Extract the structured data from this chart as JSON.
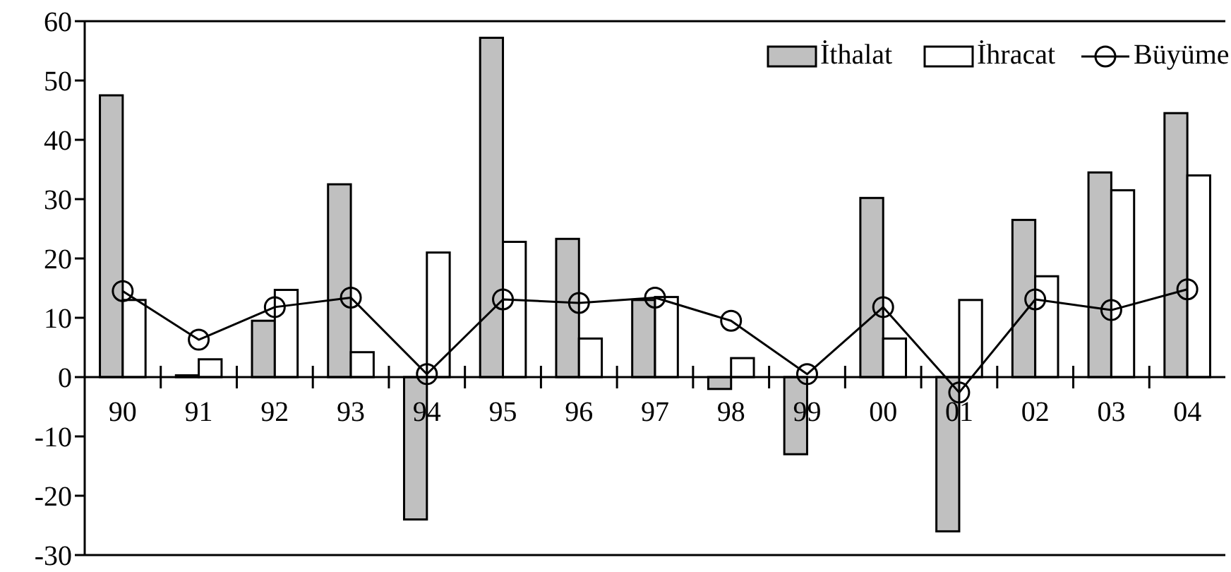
{
  "chart_data": {
    "type": "bar",
    "categories": [
      "90",
      "91",
      "92",
      "93",
      "94",
      "95",
      "96",
      "97",
      "98",
      "99",
      "00",
      "01",
      "02",
      "03",
      "04"
    ],
    "series": [
      {
        "name": "İthalat",
        "color": "#c0c0c0",
        "values": [
          47.5,
          0.3,
          9.5,
          32.5,
          -24,
          57.2,
          23.3,
          13,
          -2,
          -13,
          30.2,
          -26,
          26.5,
          34.5,
          44.5
        ]
      },
      {
        "name": "İhracat",
        "color": "#ffffff",
        "values": [
          13,
          3,
          14.7,
          4.2,
          21,
          22.8,
          6.5,
          13.5,
          3.2,
          null,
          6.5,
          13,
          17,
          31.5,
          34
        ]
      },
      {
        "name": "Büyüme",
        "type": "line",
        "color": "#000000",
        "marker": "circle",
        "values": [
          14.5,
          6.3,
          11.8,
          13.4,
          0.5,
          13.1,
          12.5,
          13.4,
          9.5,
          0.5,
          11.8,
          -2.6,
          13.1,
          11.3,
          14.8
        ]
      }
    ],
    "ylim": [
      -30,
      60
    ],
    "yticks": [
      -30,
      -20,
      -10,
      0,
      10,
      20,
      30,
      40,
      50,
      60
    ],
    "grid": false,
    "legend": "top right"
  }
}
